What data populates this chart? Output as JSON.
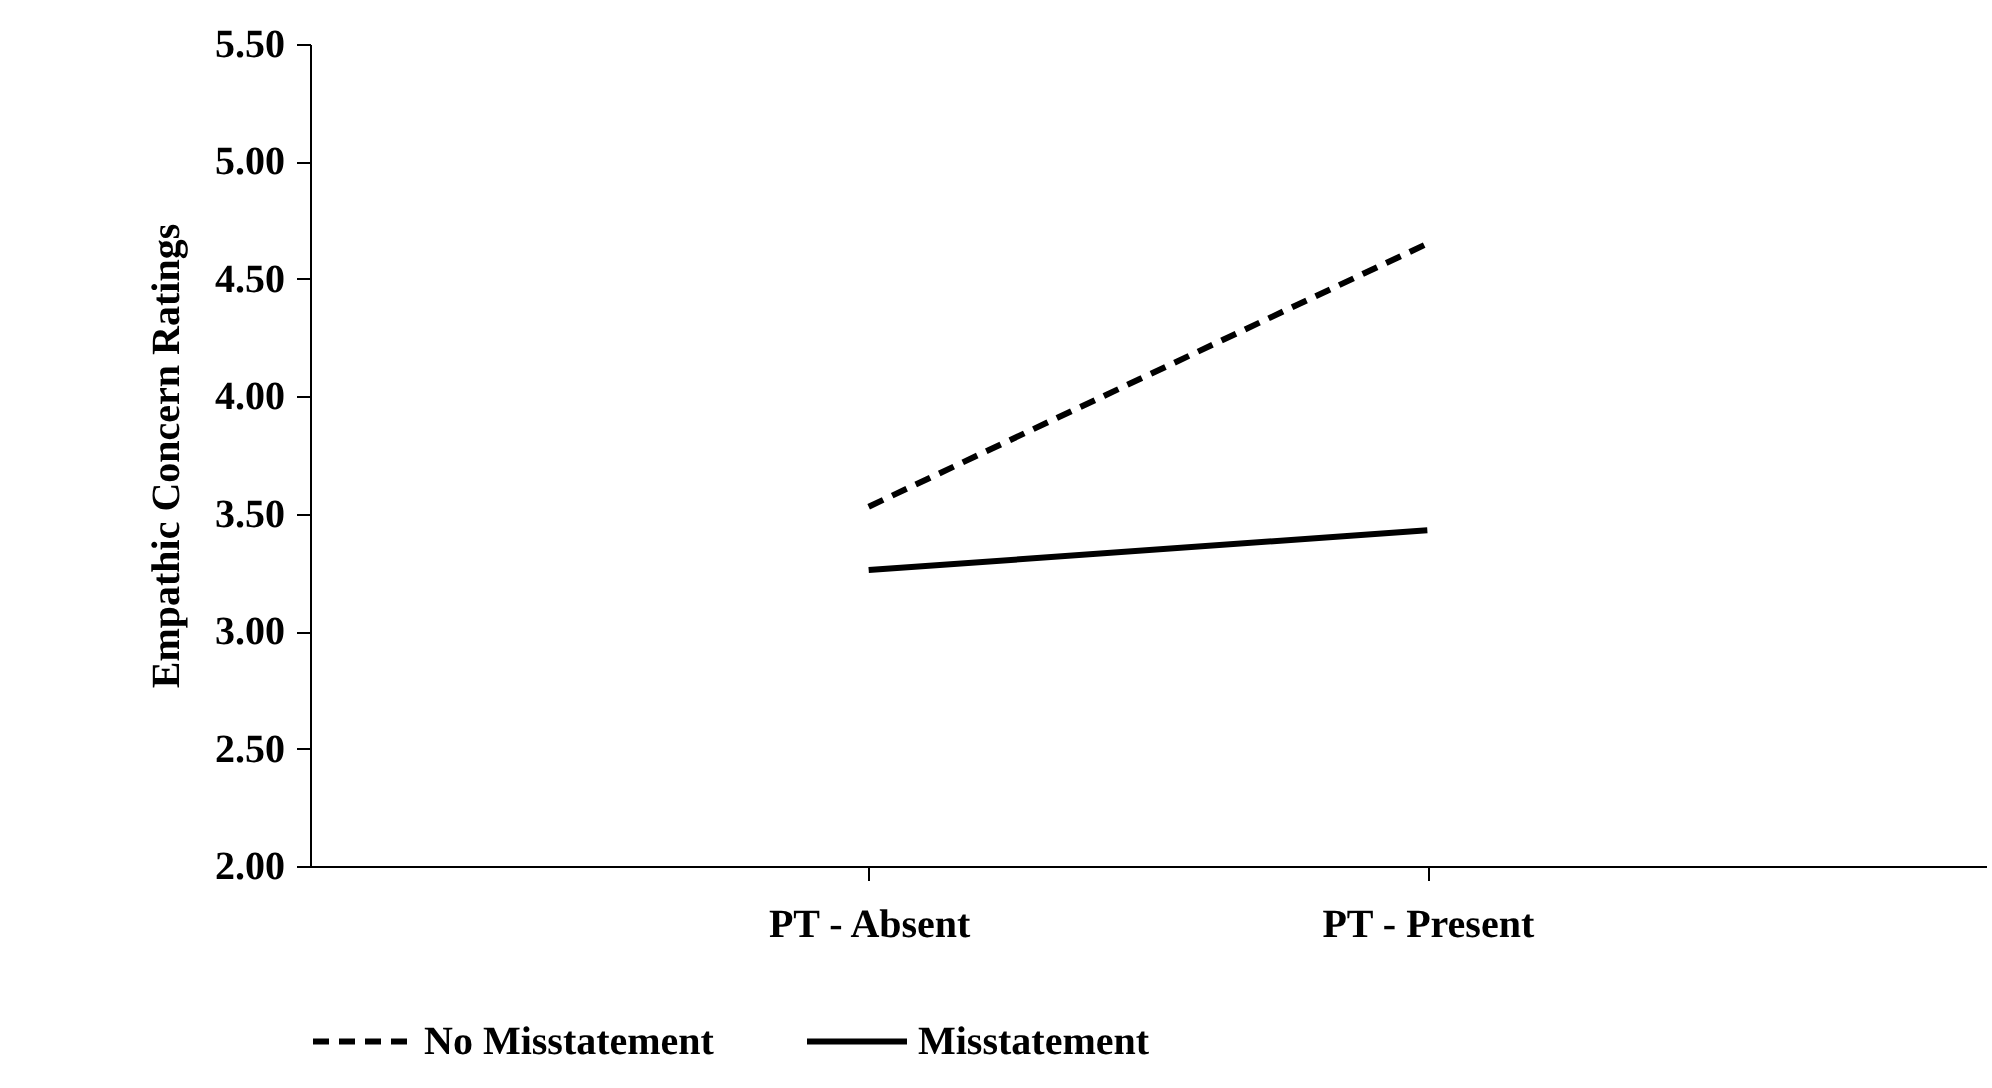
{
  "chart_data": {
    "type": "line",
    "ylabel": "Empathic Concern Ratings",
    "categories": [
      "PT - Absent",
      "PT - Present"
    ],
    "series": [
      {
        "name": "No Misstatement",
        "color": "#000000",
        "line_style": "dashed",
        "values": [
          3.53,
          4.65
        ]
      },
      {
        "name": "Misstatement",
        "color": "#000000",
        "line_style": "solid",
        "values": [
          3.26,
          3.43
        ]
      }
    ],
    "ylim": [
      2,
      5.5
    ],
    "yticks": [
      {
        "value": 2,
        "label": "2.00"
      },
      {
        "value": 2.5,
        "label": "2.50"
      },
      {
        "value": 3,
        "label": "3.00"
      },
      {
        "value": 3.5,
        "label": "3.50"
      },
      {
        "value": 4,
        "label": "4.00"
      },
      {
        "value": 4.5,
        "label": "4.50"
      },
      {
        "value": 5,
        "label": "5.00"
      },
      {
        "value": 5.5,
        "label": "5.50"
      }
    ],
    "grid": false,
    "legend": "bottom",
    "marker": "none"
  }
}
